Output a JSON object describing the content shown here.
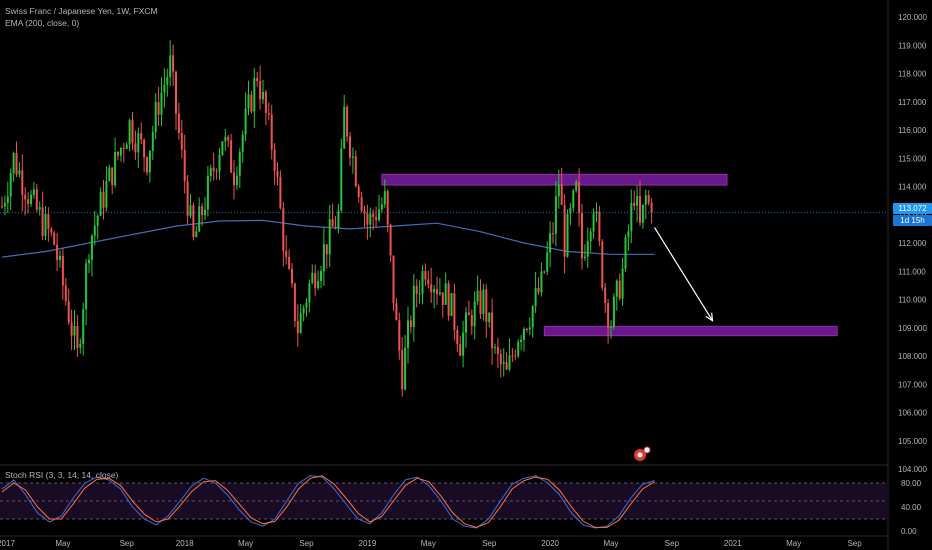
{
  "chart_data": {
    "type": "candlestick",
    "symbol_title": "Swiss Franc / Japanese Yen, 1W, FXCM",
    "indicator_label": "EMA (200, close, 0)",
    "last_price": "113.072",
    "countdown": "1d 15h",
    "colors": {
      "up": "#26c63a",
      "down": "#ef5350",
      "ema": "#3d6fb5",
      "zone": "#7b1fa2",
      "zone_border": "#9c27b0",
      "last_price": "#2196f3",
      "stoch_k": "#3d6fd6",
      "stoch_d": "#ff7043",
      "stoch_band": "#1a0b24"
    },
    "y_axis": {
      "range": [
        103.8,
        120.4
      ],
      "ticks": [
        "120.000",
        "119.000",
        "118.000",
        "117.000",
        "116.000",
        "115.000",
        "114.000",
        "113.000",
        "112.000",
        "111.000",
        "110.000",
        "109.000",
        "108.000",
        "107.000",
        "106.000",
        "105.000",
        "104.000"
      ]
    },
    "x_axis": {
      "ticks": [
        "2017",
        "May",
        "Sep",
        "2018",
        "May",
        "Sep",
        "2019",
        "May",
        "Sep",
        "2020",
        "May",
        "Sep",
        "2021",
        "May",
        "Sep"
      ]
    },
    "price_path": [
      [
        0,
        113.3
      ],
      [
        4,
        115.0
      ],
      [
        10,
        113.5
      ],
      [
        18,
        112.0
      ],
      [
        22,
        110.0
      ],
      [
        26,
        108.0
      ],
      [
        30,
        112.0
      ],
      [
        36,
        114.0
      ],
      [
        44,
        116.2
      ],
      [
        50,
        115.0
      ],
      [
        54,
        117.0
      ],
      [
        58,
        118.3
      ],
      [
        62,
        115.0
      ],
      [
        66,
        112.0
      ],
      [
        70,
        113.5
      ],
      [
        76,
        115.8
      ],
      [
        80,
        114.5
      ],
      [
        84,
        116.3
      ],
      [
        88,
        118.0
      ],
      [
        94,
        115.0
      ],
      [
        98,
        111.2
      ],
      [
        102,
        109.0
      ],
      [
        106,
        110.5
      ],
      [
        110,
        111.5
      ],
      [
        116,
        113.0
      ],
      [
        118,
        116.6
      ],
      [
        122,
        114.5
      ],
      [
        126,
        112.7
      ],
      [
        132,
        113.5
      ],
      [
        136,
        109.0
      ],
      [
        138,
        107.4
      ],
      [
        142,
        110.0
      ],
      [
        146,
        111.2
      ],
      [
        150,
        110.5
      ],
      [
        154,
        110.0
      ],
      [
        158,
        108.5
      ],
      [
        162,
        109.5
      ],
      [
        166,
        110.0
      ],
      [
        170,
        108.0
      ],
      [
        174,
        107.3
      ],
      [
        178,
        108.8
      ],
      [
        182,
        109.5
      ],
      [
        186,
        110.5
      ],
      [
        190,
        112.5
      ],
      [
        192,
        114.2
      ],
      [
        194,
        112.0
      ],
      [
        198,
        113.8
      ],
      [
        200,
        111.5
      ],
      [
        204,
        113.5
      ],
      [
        208,
        110.0
      ],
      [
        210,
        109.2
      ],
      [
        214,
        111.0
      ],
      [
        218,
        113.8
      ],
      [
        220,
        112.5
      ],
      [
        222,
        113.6
      ],
      [
        224,
        113.07
      ]
    ],
    "ema_values": [
      111.5,
      111.7,
      112.0,
      112.3,
      112.6,
      112.78,
      112.8,
      112.6,
      112.5,
      112.6,
      112.7,
      112.4,
      112.0,
      111.7,
      111.6,
      111.6
    ],
    "zones": [
      {
        "name": "resistance",
        "from_bar": 131,
        "to_bar": 250,
        "top": 114.43,
        "bottom": 114.05
      },
      {
        "name": "support",
        "from_bar": 187,
        "to_bar": 288,
        "top": 109.05,
        "bottom": 108.72
      }
    ],
    "arrow": {
      "from": {
        "bar": 225,
        "price": 112.55
      },
      "to": {
        "bar": 245,
        "price": 109.25
      }
    },
    "stoch": {
      "title": "Stoch RSI (3, 3, 14, 14, close)",
      "ticks": [
        "80.00",
        "40.00",
        "0.00"
      ],
      "band": [
        20,
        80
      ],
      "range": [
        -5,
        105
      ],
      "k": [
        70,
        85,
        60,
        30,
        15,
        25,
        55,
        80,
        90,
        85,
        70,
        40,
        20,
        10,
        25,
        50,
        75,
        88,
        80,
        60,
        35,
        15,
        8,
        20,
        50,
        80,
        92,
        90,
        70,
        45,
        20,
        12,
        30,
        60,
        85,
        90,
        75,
        50,
        20,
        8,
        5,
        20,
        50,
        78,
        88,
        92,
        80,
        60,
        30,
        10,
        5,
        8,
        25,
        55,
        78,
        84
      ],
      "d": [
        65,
        80,
        68,
        40,
        20,
        20,
        45,
        72,
        86,
        88,
        76,
        50,
        28,
        15,
        20,
        42,
        66,
        82,
        84,
        68,
        45,
        22,
        12,
        16,
        40,
        70,
        88,
        92,
        78,
        55,
        30,
        15,
        24,
        50,
        76,
        88,
        82,
        58,
        30,
        12,
        6,
        14,
        40,
        70,
        84,
        90,
        86,
        68,
        40,
        16,
        6,
        6,
        18,
        45,
        70,
        82
      ]
    }
  }
}
